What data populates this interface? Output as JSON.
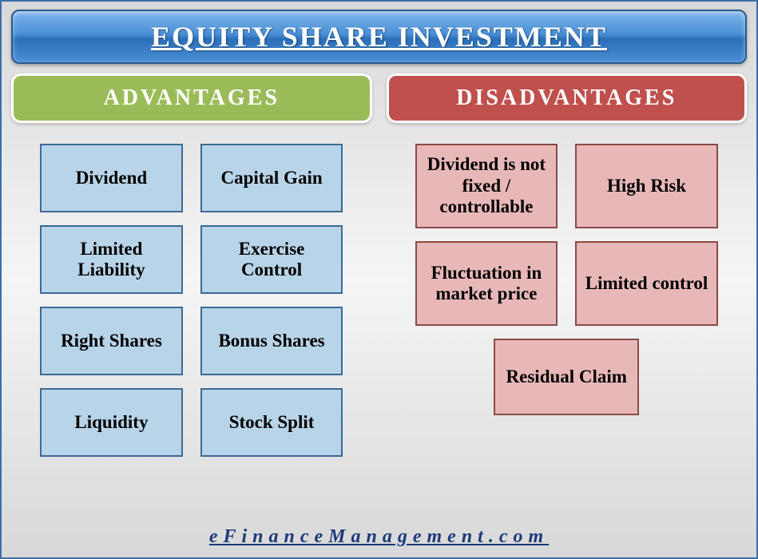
{
  "title": "EQUITY SHARE INVESTMENT",
  "advantages": {
    "header": "ADVANTAGES",
    "header_bg": "#9bbb59",
    "item_bg": "#b8d4e8",
    "item_border": "#3b6a95",
    "items": [
      "Dividend",
      "Capital Gain",
      "Limited Liability",
      "Exercise Control",
      "Right Shares",
      "Bonus Shares",
      "Liquidity",
      "Stock Split"
    ]
  },
  "disadvantages": {
    "header": "DISADVANTAGES",
    "header_bg": "#c0504d",
    "item_bg": "#e8b8b8",
    "item_border": "#8a4a4a",
    "items": [
      "Dividend is not fixed / controllable",
      "High Risk",
      "Fluctuation in market price",
      "Limited control",
      "Residual Claim"
    ]
  },
  "footer": "eFinanceManagement.com",
  "colors": {
    "title_gradient_top": "#7fb5e8",
    "title_gradient_mid": "#2a6fb8",
    "body_border": "#3a6fa8",
    "footer_text": "#1a3a7a"
  }
}
